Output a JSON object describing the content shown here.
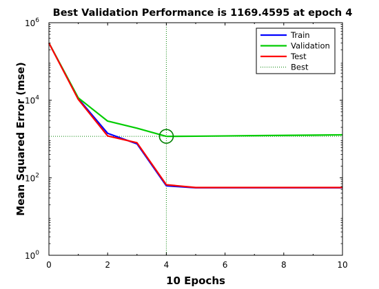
{
  "chart_data": {
    "type": "line",
    "title": "Best Validation Performance is 1169.4595 at epoch 4",
    "xlabel": "10 Epochs",
    "ylabel": "Mean Squared Error  (mse)",
    "xlim": [
      0,
      10
    ],
    "ylim": [
      1,
      1000000
    ],
    "yscale": "log",
    "x_ticks": [
      0,
      2,
      4,
      6,
      8,
      10
    ],
    "y_ticks": [
      {
        "base": "10",
        "exp": "0"
      },
      {
        "base": "10",
        "exp": "2"
      },
      {
        "base": "10",
        "exp": "4"
      },
      {
        "base": "10",
        "exp": "6"
      }
    ],
    "grid": false,
    "legend_position": "top-right",
    "x": [
      0,
      1,
      2,
      3,
      4,
      5,
      6,
      7,
      8,
      9,
      10
    ],
    "series": [
      {
        "name": "Train",
        "color": "#0000ff",
        "values": [
          300000,
          11000,
          1400,
          750,
          62,
          55,
          55,
          55,
          55,
          55,
          55
        ]
      },
      {
        "name": "Validation",
        "color": "#00cc00",
        "values": [
          300000,
          11500,
          2900,
          1900,
          1169.4595,
          1180,
          1200,
          1220,
          1240,
          1260,
          1280
        ]
      },
      {
        "name": "Test",
        "color": "#ff0000",
        "values": [
          300000,
          10500,
          1200,
          800,
          66,
          56,
          56,
          56,
          56,
          56,
          56
        ]
      }
    ],
    "best": {
      "name": "Best",
      "epoch": 4,
      "value": 1169.4595,
      "color": "#008000"
    }
  }
}
